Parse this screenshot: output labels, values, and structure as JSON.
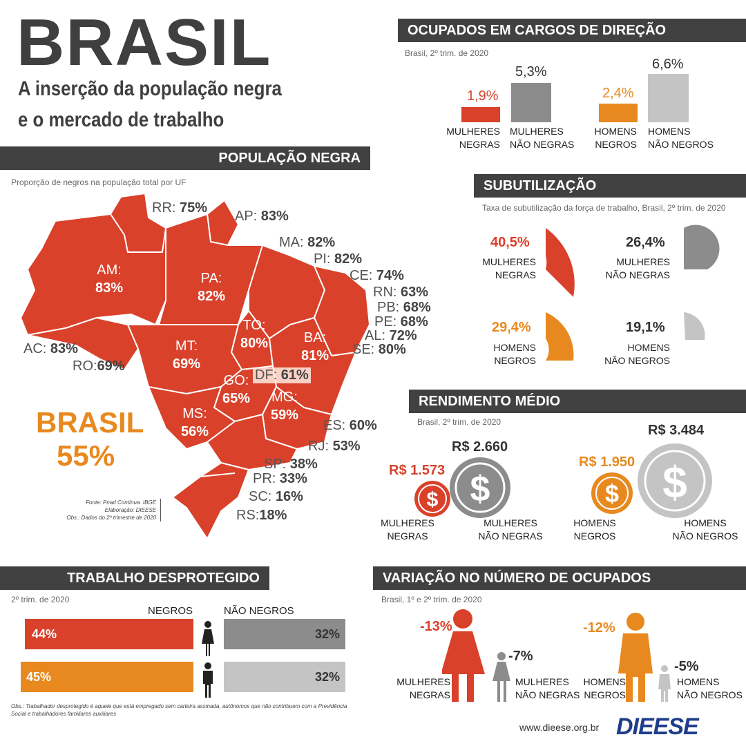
{
  "header": {
    "title": "BRASIL",
    "subtitle_line1": "A inserção da população negra",
    "subtitle_line2": "e o mercado de trabalho"
  },
  "colors": {
    "red": "#d9412b",
    "dark_gray": "#8c8c8c",
    "orange": "#e8891f",
    "light_gray": "#c4c4c4",
    "header_bar": "#414141",
    "brasil_text": "#e8891f"
  },
  "populacao": {
    "title": "POPULAÇÃO NEGRA",
    "subtitle": "Proporção de negros na população total por UF",
    "brasil_label": "BRASIL",
    "brasil_value": "55%",
    "source_1": "Fonte: Pnad Contínua. IBGE",
    "source_2": "Elaboração: DIEESE",
    "source_3": "Obs.: Dados do 2º trimestre de 2020"
  },
  "chart_data": [
    {
      "type": "table",
      "title": "POPULAÇÃO NEGRA",
      "subtitle": "Proporção de negros na população total por UF",
      "categories": [
        "RR",
        "AP",
        "MA",
        "PI",
        "CE",
        "RN",
        "PB",
        "PE",
        "AL",
        "SE",
        "BA",
        "TO",
        "PA",
        "AM",
        "AC",
        "RO",
        "MT",
        "GO",
        "DF",
        "MG",
        "ES",
        "RJ",
        "SP",
        "PR",
        "SC",
        "RS",
        "MS"
      ],
      "values": [
        75,
        83,
        82,
        82,
        74,
        63,
        68,
        68,
        72,
        80,
        81,
        80,
        82,
        83,
        83,
        69,
        69,
        65,
        61,
        59,
        60,
        53,
        38,
        33,
        16,
        18,
        56
      ],
      "labels": [
        "RR: 75%",
        "AP: 83%",
        "MA: 82%",
        "PI: 82%",
        "CE: 74%",
        "RN: 63%",
        "PB: 68%",
        "PE: 68%",
        "AL: 72%",
        "SE: 80%",
        "BA: 81%",
        "TO: 80%",
        "PA: 82%",
        "AM: 83%",
        "AC: 83%",
        "RO:69%",
        "MT: 69%",
        "GO: 65%",
        "DF: 61%",
        "MG: 59%",
        "ES: 60%",
        "RJ: 53%",
        "SP: 38%",
        "PR: 33%",
        "SC: 16%",
        "RS:18%",
        "MS: 56%"
      ],
      "brasil": 55
    },
    {
      "type": "bar",
      "title": "OCUPADOS EM CARGOS DE DIREÇÃO",
      "subtitle": "Brasil, 2º trim. de 2020",
      "categories": [
        "MULHERES NEGRAS",
        "MULHERES NÃO NEGRAS",
        "HOMENS NEGROS",
        "HOMENS NÃO NEGROS"
      ],
      "values": [
        1.9,
        5.3,
        2.4,
        6.6
      ],
      "labels": [
        "1,9%",
        "5,3%",
        "2,4%",
        "6,6%"
      ]
    },
    {
      "type": "pie",
      "title": "SUBUTILIZAÇÃO",
      "subtitle": "Taxa de subutilização da força de trabalho, Brasil, 2º trim. de 2020",
      "categories": [
        "MULHERES NEGRAS",
        "MULHERES NÃO NEGRAS",
        "HOMENS NEGROS",
        "HOMENS NÃO NEGROS"
      ],
      "values": [
        40.5,
        26.4,
        29.4,
        19.1
      ],
      "labels": [
        "40,5%",
        "26,4%",
        "29,4%",
        "19,1%"
      ]
    },
    {
      "type": "bar",
      "title": "RENDIMENTO MÉDIO",
      "subtitle": "Brasil,  2º trim. de 2020",
      "categories": [
        "MULHERES NEGRAS",
        "MULHERES NÃO NEGRAS",
        "HOMENS NEGROS",
        "HOMENS NÃO NEGROS"
      ],
      "values": [
        1573,
        2660,
        1950,
        3484
      ],
      "labels": [
        "R$ 1.573",
        "R$ 2.660",
        "R$ 1.950",
        "R$ 3.484"
      ]
    },
    {
      "type": "bar",
      "title": "TRABALHO DESPROTEGIDO",
      "subtitle": "2º trim. de 2020",
      "categories": [
        "Mulheres",
        "Homens"
      ],
      "series": [
        {
          "name": "NEGROS",
          "values": [
            44,
            45
          ],
          "labels": [
            "44%",
            "45%"
          ]
        },
        {
          "name": "NÃO NEGROS",
          "values": [
            32,
            32
          ],
          "labels": [
            "32%",
            "32%"
          ]
        }
      ]
    },
    {
      "type": "bar",
      "title": "VARIAÇÃO NO NÚMERO DE OCUPADOS",
      "subtitle": "Brasil, 1º e 2º trim. de 2020",
      "categories": [
        "MULHERES NEGRAS",
        "MULHERES NÃO NEGRAS",
        "HOMENS NEGROS",
        "HOMENS NÃO NEGROS"
      ],
      "values": [
        -13,
        -7,
        -12,
        -5
      ],
      "labels": [
        "-13%",
        "-7%",
        "-12%",
        "-5%"
      ]
    }
  ],
  "cargos": {
    "title": "OCUPADOS EM CARGOS DE DIREÇÃO",
    "subtitle": "Brasil, 2º trim. de 2020",
    "items": [
      {
        "value": "1,9%",
        "l1": "MULHERES",
        "l2": "NEGRAS"
      },
      {
        "value": "5,3%",
        "l1": "MULHERES",
        "l2": "NÃO NEGRAS"
      },
      {
        "value": "2,4%",
        "l1": "HOMENS",
        "l2": "NEGROS"
      },
      {
        "value": "6,6%",
        "l1": "HOMENS",
        "l2": "NÃO NEGROS"
      }
    ]
  },
  "subutil": {
    "title": "SUBUTILIZAÇÃO",
    "subtitle": "Taxa de subutilização da força de trabalho, Brasil, 2º trim. de 2020",
    "items": [
      {
        "value": "40,5%",
        "l1": "MULHERES",
        "l2": "NEGRAS"
      },
      {
        "value": "26,4%",
        "l1": "MULHERES",
        "l2": "NÃO NEGRAS"
      },
      {
        "value": "29,4%",
        "l1": "HOMENS",
        "l2": "NEGROS"
      },
      {
        "value": "19,1%",
        "l1": "HOMENS",
        "l2": "NÃO NEGROS"
      }
    ]
  },
  "rendimento": {
    "title": "RENDIMENTO MÉDIO",
    "subtitle": "Brasil,  2º trim. de 2020",
    "symbol": "$",
    "items": [
      {
        "value": "R$ 1.573",
        "l1": "MULHERES",
        "l2": "NEGRAS"
      },
      {
        "value": "R$ 2.660",
        "l1": "MULHERES",
        "l2": "NÃO NEGRAS"
      },
      {
        "value": "R$ 1.950",
        "l1": "HOMENS",
        "l2": "NEGROS"
      },
      {
        "value": "R$ 3.484",
        "l1": "HOMENS",
        "l2": "NÃO NEGROS"
      }
    ]
  },
  "trabalho": {
    "title": "TRABALHO DESPROTEGIDO",
    "subtitle": "2º trim. de 2020",
    "col_negros": "NEGROS",
    "col_nao_negros": "NÃO NEGROS",
    "row1_neg": "44%",
    "row1_nao": "32%",
    "row2_neg": "45%",
    "row2_nao": "32%",
    "obs_1": "Obs.: Trabalhador desprotegido é aquele que está empregado sem carteira assinada, autônomos que não contribuem com a Previdência",
    "obs_2": "Social e trabalhadores familiares auxiliares"
  },
  "variacao": {
    "title": "VARIAÇÃO NO NÚMERO DE OCUPADOS",
    "subtitle": "Brasil, 1º e 2º trim. de 2020",
    "items": [
      {
        "value": "-13%",
        "l1": "MULHERES",
        "l2": "NEGRAS"
      },
      {
        "value": "-7%",
        "l1": "MULHERES",
        "l2": "NÃO NEGRAS"
      },
      {
        "value": "-12%",
        "l1": "HOMENS",
        "l2": "NEGROS"
      },
      {
        "value": "-5%",
        "l1": "HOMENS",
        "l2": "NÃO NEGROS"
      }
    ]
  },
  "footer": {
    "url": "www.dieese.org.br",
    "logo": "DIEESE"
  }
}
